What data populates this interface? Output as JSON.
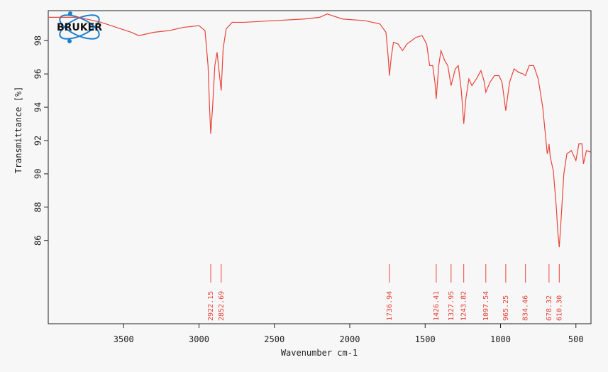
{
  "chart_data": {
    "type": "line",
    "logo": "BRUKER",
    "xlabel": "Wavenumber cm-1",
    "ylabel": "Transmittance [%]",
    "xlim": [
      4000,
      400
    ],
    "ylim": [
      81,
      99.8
    ],
    "xticks": [
      3500,
      3000,
      2500,
      2000,
      1500,
      1000,
      500
    ],
    "yticks": [
      86,
      88,
      90,
      92,
      94,
      96,
      98
    ],
    "grid": false,
    "series": [
      {
        "color": "#e8453c",
        "x": [
          4000,
          3800,
          3650,
          3550,
          3450,
          3400,
          3300,
          3200,
          3100,
          3000,
          2960,
          2940,
          2930,
          2922.15,
          2910,
          2895,
          2880,
          2865,
          2852.69,
          2840,
          2820,
          2780,
          2700,
          2500,
          2300,
          2200,
          2150,
          2050,
          1900,
          1800,
          1760,
          1745,
          1736.94,
          1725,
          1710,
          1680,
          1650,
          1620,
          1560,
          1520,
          1490,
          1470,
          1450,
          1435,
          1426.41,
          1410,
          1395,
          1370,
          1350,
          1327.95,
          1300,
          1280,
          1260,
          1243.82,
          1230,
          1210,
          1190,
          1160,
          1130,
          1110,
          1097.54,
          1070,
          1040,
          1010,
          990,
          965.25,
          940,
          910,
          880,
          850,
          834.46,
          810,
          780,
          750,
          720,
          690,
          680,
          678.32,
          670,
          650,
          630,
          620,
          610.3,
          600,
          580,
          560,
          530,
          500,
          480,
          460,
          450,
          430,
          400
        ],
        "values": [
          99.4,
          99.4,
          99.1,
          98.8,
          98.5,
          98.3,
          98.5,
          98.6,
          98.8,
          98.9,
          98.6,
          96.5,
          94,
          92.4,
          94,
          96.5,
          97.3,
          96,
          95.0,
          97.5,
          98.7,
          99.1,
          99.1,
          99.2,
          99.3,
          99.4,
          99.6,
          99.3,
          99.2,
          99.0,
          98.5,
          97,
          95.9,
          97,
          97.9,
          97.8,
          97.4,
          97.8,
          98.2,
          98.3,
          97.8,
          96.5,
          96.5,
          95.5,
          94.5,
          96.5,
          97.4,
          96.8,
          96.5,
          95.3,
          96.3,
          96.5,
          95,
          93.0,
          94.5,
          95.7,
          95.3,
          95.7,
          96.2,
          95.6,
          94.9,
          95.5,
          95.9,
          95.9,
          95.5,
          93.8,
          95.5,
          96.3,
          96.1,
          96.0,
          95.9,
          96.5,
          96.5,
          95.7,
          94,
          91.2,
          91.6,
          91.8,
          91,
          90.2,
          88,
          86.5,
          85.6,
          87,
          90,
          91.2,
          91.4,
          90.8,
          91.8,
          91.8,
          90.6,
          91.4,
          91.3
        ]
      }
    ],
    "peaks": [
      2922.15,
      2852.69,
      1736.94,
      1426.41,
      1327.95,
      1243.82,
      1097.54,
      965.25,
      834.46,
      678.32,
      {
        "value": 610.3,
        "label": "610.30"
      }
    ]
  }
}
